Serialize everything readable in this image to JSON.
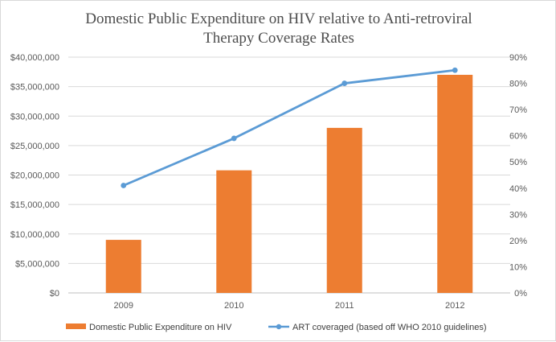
{
  "chart_data": {
    "type": "bar",
    "title_lines": [
      "Domestic Public Expenditure on HIV relative to Anti-retroviral",
      "Therapy Coverage Rates"
    ],
    "categories": [
      "2009",
      "2010",
      "2011",
      "2012"
    ],
    "series": [
      {
        "name": "Domestic Public Expenditure on HIV",
        "type": "bar",
        "axis": "left",
        "color": "#ed7d31",
        "values": [
          9000000,
          20800000,
          28000000,
          37000000
        ]
      },
      {
        "name": "ART coveraged (based off WHO 2010 guidelines)",
        "type": "line",
        "axis": "right",
        "color": "#5b9bd5",
        "values": [
          0.41,
          0.59,
          0.8,
          0.85
        ]
      }
    ],
    "left_axis": {
      "min": 0,
      "max": 40000000,
      "step": 5000000,
      "tick_labels": [
        "$0",
        "$5,000,000",
        "$10,000,000",
        "$15,000,000",
        "$20,000,000",
        "$25,000,000",
        "$30,000,000",
        "$35,000,000",
        "$40,000,000"
      ]
    },
    "right_axis": {
      "min": 0,
      "max": 0.9,
      "step": 0.1,
      "tick_labels": [
        "0%",
        "10%",
        "20%",
        "30%",
        "40%",
        "50%",
        "60%",
        "70%",
        "80%",
        "90%"
      ]
    },
    "gridlines": true,
    "legend_position": "bottom"
  }
}
